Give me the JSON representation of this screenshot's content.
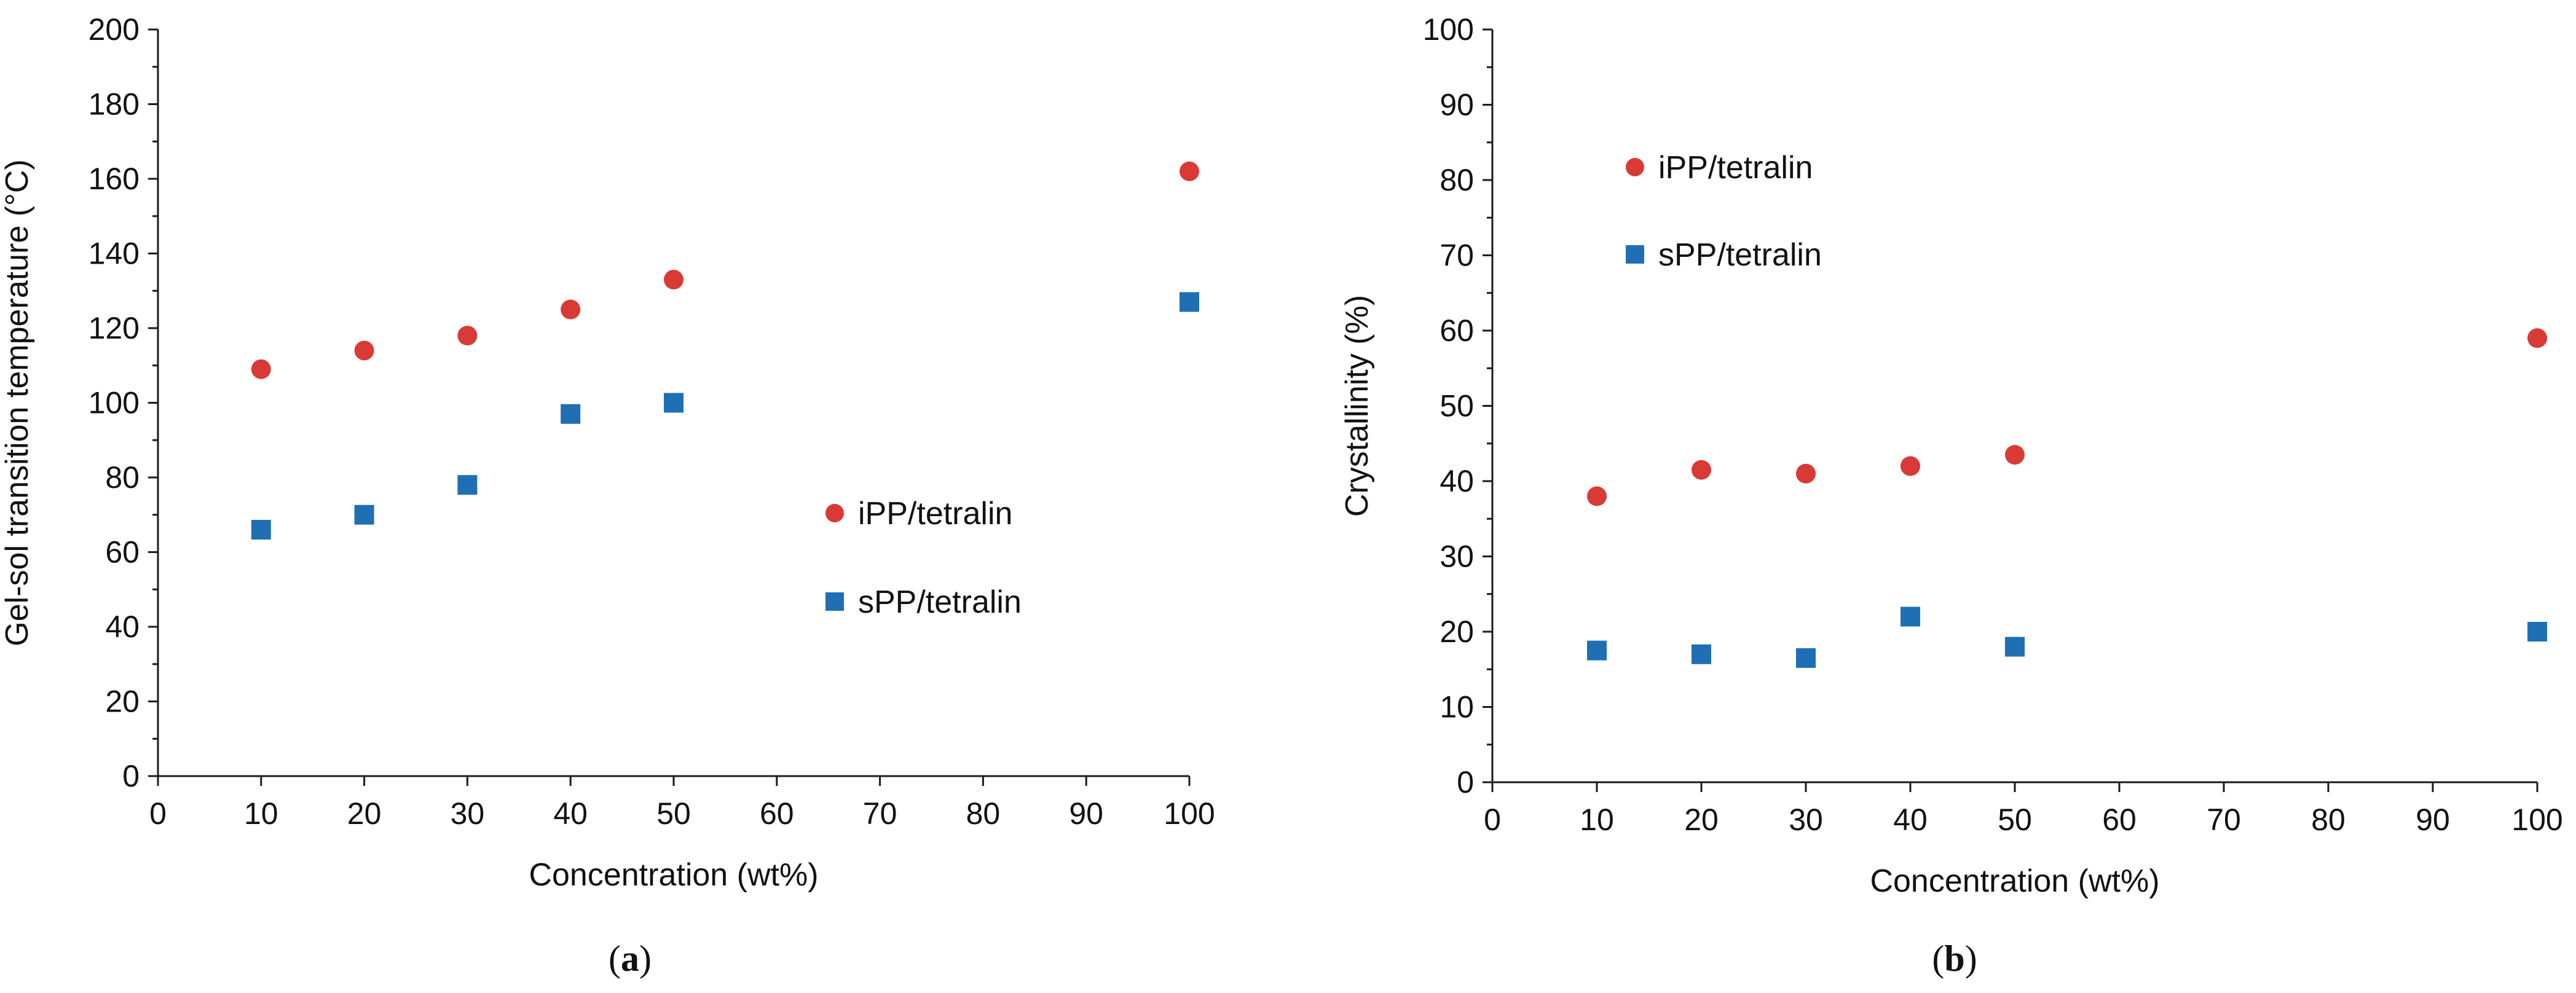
{
  "colors": {
    "ipp": "#d93a36",
    "spp": "#1e6fb3",
    "axis": "#1a1a1a"
  },
  "chart_data": [
    {
      "type": "scatter",
      "panel_label": "a",
      "title": "",
      "xlabel": "Concentration (wt%)",
      "ylabel": "Gel-sol transition temperature (°C)",
      "xlim": [
        0,
        100
      ],
      "ylim": [
        0,
        200
      ],
      "xticks": [
        "0",
        "10",
        "20",
        "30",
        "40",
        "50",
        "60",
        "70",
        "80",
        "90",
        "100"
      ],
      "yticks": [
        "0",
        "20",
        "40",
        "60",
        "80",
        "100",
        "120",
        "140",
        "160",
        "180",
        "200"
      ],
      "grid": false,
      "legend_position": "right-middle",
      "series": [
        {
          "name": "iPP/tetralin",
          "marker": "circle",
          "color": "#d93a36",
          "x": [
            10,
            20,
            30,
            40,
            50,
            100
          ],
          "y": [
            109,
            114,
            118,
            125,
            133,
            162
          ]
        },
        {
          "name": "sPP/tetralin",
          "marker": "square",
          "color": "#1e6fb3",
          "x": [
            10,
            20,
            30,
            40,
            50,
            100
          ],
          "y": [
            66,
            70,
            78,
            97,
            100,
            127
          ]
        }
      ]
    },
    {
      "type": "scatter",
      "panel_label": "b",
      "title": "",
      "xlabel": "Concentration (wt%)",
      "ylabel": "Crystallinity (%)",
      "xlim": [
        0,
        100
      ],
      "ylim": [
        0,
        100
      ],
      "xticks": [
        "0",
        "10",
        "20",
        "30",
        "40",
        "50",
        "60",
        "70",
        "80",
        "90",
        "100"
      ],
      "yticks": [
        "0",
        "10",
        "20",
        "30",
        "40",
        "50",
        "60",
        "70",
        "80",
        "90",
        "100"
      ],
      "grid": false,
      "legend_position": "top-left",
      "series": [
        {
          "name": "iPP/tetralin",
          "marker": "circle",
          "color": "#d93a36",
          "x": [
            10,
            20,
            30,
            40,
            50,
            100
          ],
          "y": [
            38,
            41.5,
            41,
            42,
            43.5,
            59
          ]
        },
        {
          "name": "sPP/tetralin",
          "marker": "square",
          "color": "#1e6fb3",
          "x": [
            10,
            20,
            30,
            40,
            50,
            100
          ],
          "y": [
            17.5,
            17,
            16.5,
            22,
            18,
            20
          ]
        }
      ]
    }
  ]
}
